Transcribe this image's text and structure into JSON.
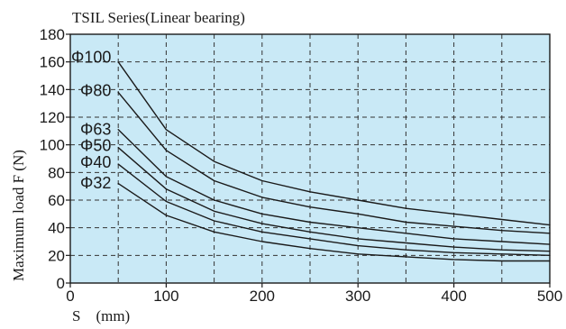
{
  "chart_data": {
    "type": "line",
    "title": "TSIL Series(Linear bearing)",
    "xlabel": "S　(mm)",
    "ylabel": "Maximum load  F  (N)",
    "xlim": [
      0,
      500
    ],
    "ylim": [
      0,
      180
    ],
    "x_ticks": [
      0,
      100,
      200,
      300,
      400,
      500
    ],
    "y_ticks": [
      0,
      20,
      40,
      60,
      80,
      100,
      120,
      140,
      160,
      180
    ],
    "x_grid": [
      50,
      100,
      150,
      200,
      250,
      300,
      350,
      400,
      450,
      500
    ],
    "y_grid": [
      20,
      40,
      60,
      80,
      100,
      120,
      140,
      160
    ],
    "grid": true,
    "grid_style": "dashed",
    "colors": {
      "plot_background": "#c9e9f6",
      "line": "#1a1a1a",
      "grid": "#333333"
    },
    "series": [
      {
        "name": "Φ100",
        "x": [
          50,
          100,
          150,
          200,
          250,
          300,
          350,
          400,
          450,
          500
        ],
        "values": [
          160,
          111,
          88,
          74,
          66,
          60,
          54,
          50,
          46,
          42
        ]
      },
      {
        "name": "Φ80",
        "x": [
          50,
          100,
          150,
          200,
          250,
          300,
          350,
          400,
          450,
          500
        ],
        "values": [
          138,
          96,
          74,
          62,
          55,
          50,
          44,
          41,
          38,
          36
        ]
      },
      {
        "name": "Φ63",
        "x": [
          50,
          100,
          150,
          200,
          250,
          300,
          350,
          400,
          450,
          500
        ],
        "values": [
          111,
          77,
          60,
          50,
          44,
          40,
          36,
          32,
          30,
          28
        ]
      },
      {
        "name": "Φ50",
        "x": [
          50,
          100,
          150,
          200,
          250,
          300,
          350,
          400,
          450,
          500
        ],
        "values": [
          98,
          68,
          52,
          43,
          37,
          32,
          29,
          26,
          24,
          23
        ]
      },
      {
        "name": "Φ40",
        "x": [
          50,
          100,
          150,
          200,
          250,
          300,
          350,
          400,
          450,
          500
        ],
        "values": [
          86,
          59,
          45,
          37,
          32,
          27,
          24,
          22,
          21,
          20
        ]
      },
      {
        "name": "Φ32",
        "x": [
          50,
          100,
          150,
          200,
          250,
          300,
          350,
          400,
          450,
          500
        ],
        "values": [
          72,
          49,
          37,
          30,
          25,
          21,
          19,
          17,
          16,
          16
        ]
      }
    ],
    "series_label_y": [
      164,
      140,
      112,
      100,
      88,
      73
    ]
  }
}
